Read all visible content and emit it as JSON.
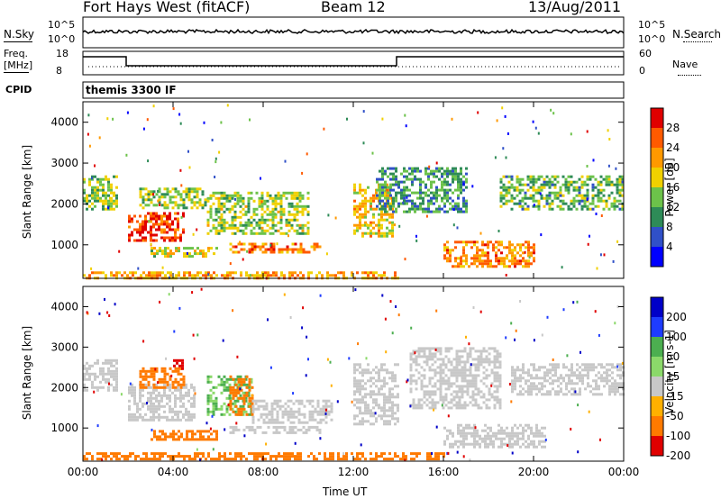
{
  "header": {
    "station": "Fort Hays West (fitACF)",
    "beam": "Beam 12",
    "date": "13/Aug/2011"
  },
  "top_panel": {
    "left_label": "N.Sky",
    "right_label": "N.Search",
    "left_ticks": [
      "10^5",
      "10^0"
    ],
    "right_ticks": [
      "10^5",
      "10^0"
    ]
  },
  "freq_panel": {
    "left_label_line1": "Freq.",
    "left_label_line2": "[MHz]",
    "right_label": "Nave",
    "left_ticks": [
      "18",
      "8"
    ],
    "right_ticks": [
      "60",
      "0"
    ]
  },
  "cpid_panel": {
    "label": "CPID",
    "text": "themis 3300 IF"
  },
  "chart_data": [
    {
      "type": "heatmap",
      "title": "",
      "xlabel": "",
      "ylabel": "Slant Range [km]",
      "xlim": [
        0,
        24
      ],
      "ylim": [
        180,
        4500
      ],
      "x_ticks": [
        "00:00",
        "04:00",
        "08:00",
        "12:00",
        "16:00",
        "20:00",
        "00:00"
      ],
      "y_ticks": [
        "1000",
        "2000",
        "3000",
        "4000"
      ],
      "colorbar": {
        "label": "Power [dB]",
        "ticks": [
          "4",
          "8",
          "12",
          "16",
          "20",
          "24",
          "28"
        ],
        "range": [
          0,
          30
        ]
      },
      "regions": [
        {
          "t": [
            0.0,
            1.5
          ],
          "range": [
            1900,
            2700
          ],
          "value": 14
        },
        {
          "t": [
            2.0,
            4.5
          ],
          "range": [
            1100,
            1800
          ],
          "value": 26
        },
        {
          "t": [
            2.5,
            5.5
          ],
          "range": [
            1900,
            2400
          ],
          "value": 14
        },
        {
          "t": [
            3.0,
            6.0
          ],
          "range": [
            700,
            950
          ],
          "value": 16
        },
        {
          "t": [
            5.5,
            10.0
          ],
          "range": [
            1300,
            2300
          ],
          "value": 14
        },
        {
          "t": [
            6.5,
            10.5
          ],
          "range": [
            850,
            1050
          ],
          "value": 22
        },
        {
          "t": [
            12.0,
            13.7
          ],
          "range": [
            1200,
            2500
          ],
          "value": 18
        },
        {
          "t": [
            13.0,
            17.0
          ],
          "range": [
            1800,
            2900
          ],
          "value": 10
        },
        {
          "t": [
            16.0,
            20.0
          ],
          "range": [
            500,
            1100
          ],
          "value": 22
        },
        {
          "t": [
            18.5,
            24.0
          ],
          "range": [
            1900,
            2700
          ],
          "value": 12
        },
        {
          "t": [
            0.0,
            14.0
          ],
          "range": [
            200,
            350
          ],
          "value": 20
        }
      ]
    },
    {
      "type": "heatmap",
      "title": "",
      "xlabel": "Time UT",
      "ylabel": "Slant Range [km]",
      "xlim": [
        0,
        24
      ],
      "ylim": [
        180,
        4500
      ],
      "x_ticks": [
        "00:00",
        "04:00",
        "08:00",
        "12:00",
        "16:00",
        "20:00",
        "00:00"
      ],
      "y_ticks": [
        "1000",
        "2000",
        "3000",
        "4000"
      ],
      "colorbar": {
        "label": "Velocity [m s-1]",
        "ticks": [
          "200",
          "100",
          "50",
          "15",
          "-15",
          "-50",
          "-100",
          "-200"
        ],
        "range": [
          -250,
          250
        ]
      },
      "regions": [
        {
          "t": [
            0.0,
            1.5
          ],
          "range": [
            1900,
            2700
          ],
          "value": 0
        },
        {
          "t": [
            2.0,
            5.0
          ],
          "range": [
            1200,
            2100
          ],
          "value": 0
        },
        {
          "t": [
            2.5,
            4.5
          ],
          "range": [
            2000,
            2500
          ],
          "value": -60
        },
        {
          "t": [
            4.0,
            4.4
          ],
          "range": [
            2400,
            2700
          ],
          "value": -220
        },
        {
          "t": [
            5.5,
            7.5
          ],
          "range": [
            1300,
            2300
          ],
          "value": 30
        },
        {
          "t": [
            6.5,
            7.5
          ],
          "range": [
            1300,
            2300
          ],
          "value": -60
        },
        {
          "t": [
            7.5,
            11.0
          ],
          "range": [
            1100,
            1700
          ],
          "value": 0
        },
        {
          "t": [
            3.0,
            6.0
          ],
          "range": [
            700,
            950
          ],
          "value": -60
        },
        {
          "t": [
            6.5,
            10.5
          ],
          "range": [
            850,
            1050
          ],
          "value": 0
        },
        {
          "t": [
            12.0,
            14.0
          ],
          "range": [
            1100,
            2600
          ],
          "value": 0
        },
        {
          "t": [
            14.5,
            18.5
          ],
          "range": [
            1500,
            3000
          ],
          "value": 0
        },
        {
          "t": [
            16.0,
            20.5
          ],
          "range": [
            500,
            1100
          ],
          "value": 0
        },
        {
          "t": [
            19.0,
            24.0
          ],
          "range": [
            1800,
            2600
          ],
          "value": 0
        },
        {
          "t": [
            0.0,
            16.0
          ],
          "range": [
            200,
            400
          ],
          "value": -60
        }
      ]
    }
  ]
}
